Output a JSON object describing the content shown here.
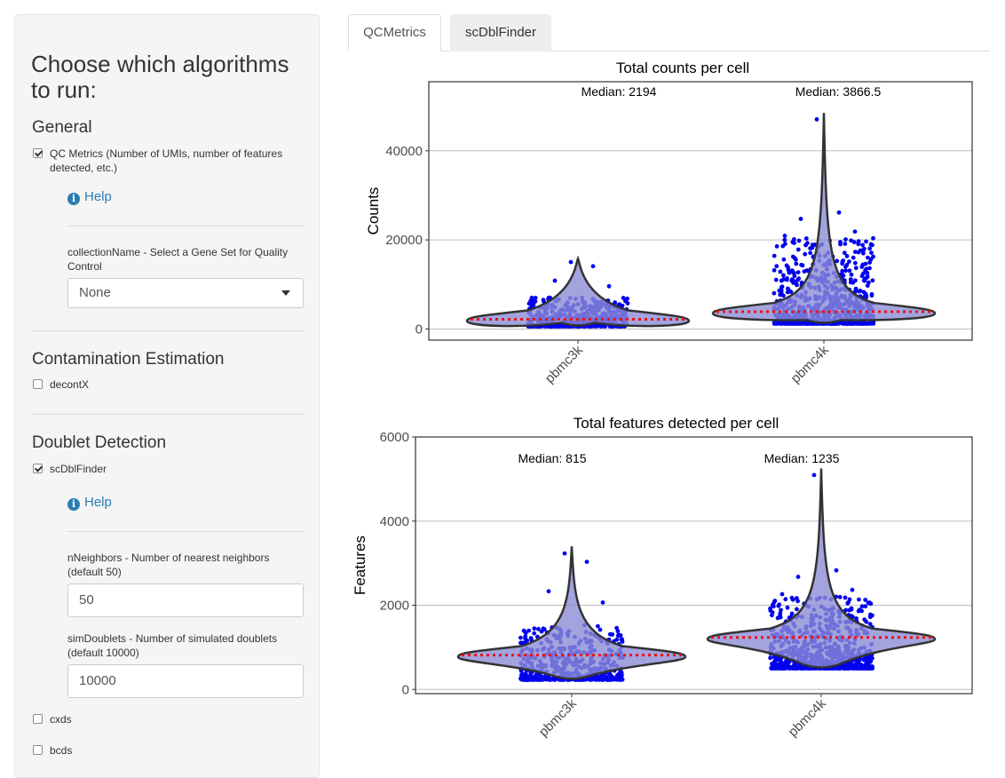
{
  "sidebar": {
    "title": "Choose which algorithms to run:",
    "general": {
      "heading": "General",
      "qc_label": "QC Metrics (Number of UMIs, number of features detected, etc.)",
      "qc_checked": true,
      "help": "Help",
      "collection_label": "collectionName - Select a Gene Set for Quality Control",
      "collection_value": "None"
    },
    "contamination": {
      "heading": "Contamination Estimation",
      "decontx_label": "decontX",
      "decontx_checked": false
    },
    "doublet": {
      "heading": "Doublet Detection",
      "scdbl_label": "scDblFinder",
      "scdbl_checked": true,
      "help": "Help",
      "nneighbors_label": "nNeighbors - Number of nearest neighbors (default 50)",
      "nneighbors_value": "50",
      "simdoublets_label": "simDoublets - Number of simulated doublets (default 10000)",
      "simdoublets_value": "10000",
      "cxds_label": "cxds",
      "cxds_checked": false,
      "bcds_label": "bcds",
      "bcds_checked": false
    }
  },
  "tabs": [
    {
      "label": "QCMetrics",
      "active": true
    },
    {
      "label": "scDblFinder",
      "active": false
    }
  ],
  "colors": {
    "points": "#0000ee",
    "violin_fill": "#8c8cd6",
    "median_line": "#ee1111",
    "grid": "#bdbdbd"
  },
  "chart_data": [
    {
      "type": "violin",
      "title": "Total counts per cell",
      "ylabel": "Counts",
      "xlabel": "",
      "categories": [
        "pbmc3k",
        "pbmc4k"
      ],
      "yticks": [
        0,
        20000,
        40000
      ],
      "ylim": [
        -2500,
        55500
      ],
      "medians": [
        2194,
        3866.5
      ],
      "median_labels": [
        "Median: 2194",
        "Median: 3866.5"
      ],
      "max": [
        15800,
        48500
      ],
      "min": [
        600,
        1200
      ],
      "grid": true
    },
    {
      "type": "violin",
      "title": "Total features detected per cell",
      "ylabel": "Features",
      "xlabel": "",
      "categories": [
        "pbmc3k",
        "pbmc4k"
      ],
      "yticks": [
        0,
        2000,
        4000,
        6000
      ],
      "ylim": [
        -100,
        6000
      ],
      "medians": [
        815,
        1235
      ],
      "median_labels": [
        "Median: 815",
        "Median: 1235"
      ],
      "max": [
        3400,
        5250
      ],
      "min": [
        230,
        500
      ],
      "grid": true
    }
  ]
}
